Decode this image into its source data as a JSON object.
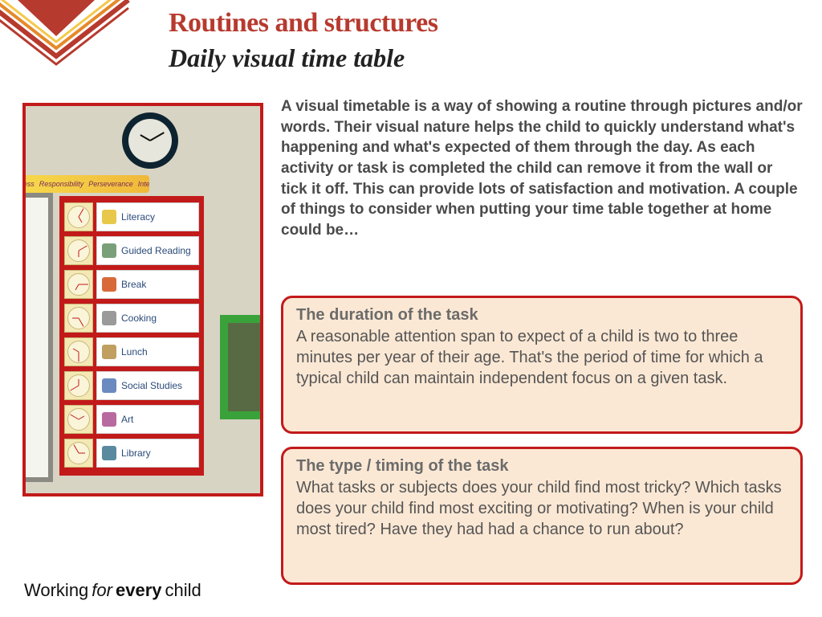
{
  "header": {
    "title": "Routines and structures",
    "subtitle": "Daily visual time table",
    "title_color": "#b73a2e",
    "subtitle_color": "#222222",
    "title_fontsize": 34,
    "subtitle_fontsize": 32
  },
  "corner_decoration": {
    "stripe_colors": [
      "#b73a2e",
      "#e58a2a",
      "#f4c84a",
      "#b73a2e"
    ],
    "background": "#ffffff"
  },
  "intro": {
    "text": "A visual timetable is a way of showing a routine through pictures and/or words. Their visual nature helps the child to quickly understand what's happening and what's expected of them through the day. As each activity or task is completed the child can remove it from the wall or tick it off. This can provide lots of satisfaction  and motivation. A couple of things to consider when putting your time table together at home could be…",
    "color": "#4a4a4a",
    "fontsize": 19,
    "fontweight": 700
  },
  "callouts": [
    {
      "title": "The duration of the task",
      "body": "A reasonable attention span to expect of a child is two to three minutes per year of their age. That's the period of time for which a typical child can maintain independent focus on a given task."
    },
    {
      "title": "The type / timing of the task",
      "body": "What tasks or subjects does your child find most tricky? Which tasks does your child find most exciting or motivating? When is your child most tired? Have they had had a chance to run about?"
    }
  ],
  "callout_style": {
    "background": "#fbe8d4",
    "border_color": "#c21a1a",
    "border_width": 3,
    "border_radius": 14,
    "title_color": "#6b6b6b",
    "body_color": "#555555",
    "fontsize": 20
  },
  "photo": {
    "frame_border_color": "#c21a1a",
    "wall_color": "#d8d4c4",
    "clock": {
      "rim": "#0d2430",
      "face": "#e6e6dc",
      "hour_angle": 300,
      "minute_angle": 60
    },
    "banner_words": [
      "Fairness",
      "Responsibility",
      "Perseverance",
      "Integrity"
    ],
    "board_color": "#c21a1a",
    "label_bg": "#ffffff",
    "label_text_color": "#2a4a7a",
    "mini_clock_bg": "#f4e9b6",
    "green_frame": "#3aa23a",
    "timetable": [
      {
        "label": "Literacy",
        "icon_color": "#e8c84a",
        "hand_deg": 30
      },
      {
        "label": "Guided Reading",
        "icon_color": "#7aa07a",
        "hand_deg": 60
      },
      {
        "label": "Break",
        "icon_color": "#d86a3a",
        "hand_deg": 90
      },
      {
        "label": "Cooking",
        "icon_color": "#9a9a9a",
        "hand_deg": 150
      },
      {
        "label": "Lunch",
        "icon_color": "#c0a060",
        "hand_deg": 180
      },
      {
        "label": "Social Studies",
        "icon_color": "#6a8ac0",
        "hand_deg": 240
      },
      {
        "label": "Art",
        "icon_color": "#b86aa0",
        "hand_deg": 300
      },
      {
        "label": "Library",
        "icon_color": "#5a8aa0",
        "hand_deg": 330
      }
    ]
  },
  "footer": {
    "w1": "Working",
    "w2": "for",
    "w3": "every",
    "w4": "child"
  }
}
